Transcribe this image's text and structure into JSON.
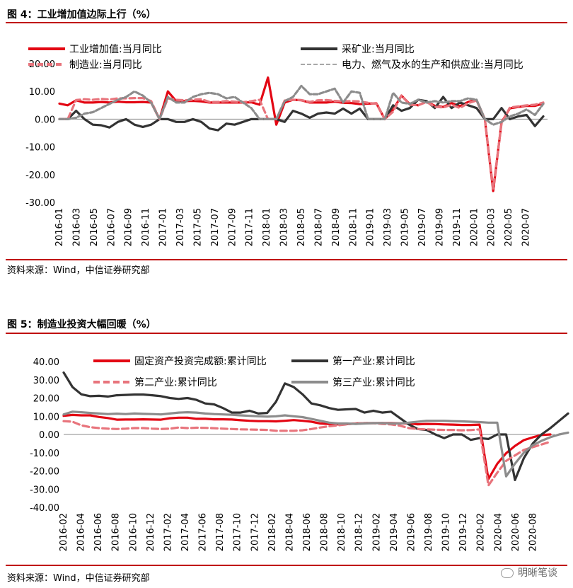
{
  "figure1": {
    "title": "图 4：工业增加值边际上行（%）",
    "source": "资料来源：Wind，中信证券研究部"
  },
  "figure2": {
    "title": "图 5：制造业投资大幅回暖（%）",
    "source": "资料来源：Wind，中信证券研究部"
  },
  "watermark": "明晰笔谈",
  "colors": {
    "red": "#e30613",
    "dark": "#333333",
    "pink": "#e8747c",
    "gray": "#8c8c8c",
    "rule": "#c00000"
  },
  "chart_data": [
    {
      "type": "line",
      "title": "图 4：工业增加值边际上行（%）",
      "ylim": [
        -30,
        20
      ],
      "yticks": [
        "-30.00",
        "-20.00",
        "-10.00",
        "0.00",
        "10.00",
        "20.00"
      ],
      "xtick_labels": [
        "2016-01",
        "2016-03",
        "2016-05",
        "2016-07",
        "2016-09",
        "2016-11",
        "2017-01",
        "2017-03",
        "2017-05",
        "2017-07",
        "2017-09",
        "2017-11",
        "2018-01",
        "2018-03",
        "2018-05",
        "2018-07",
        "2018-09",
        "2018-11",
        "2019-01",
        "2019-03",
        "2019-05",
        "2019-07",
        "2019-09",
        "2019-11",
        "2020-01",
        "2020-03",
        "2020-05",
        "2020-07"
      ],
      "legend_placement": "top",
      "series": [
        {
          "name": "工业增加值:当月同比",
          "color": "#e30613",
          "width": 3.2,
          "dash": "",
          "values": [
            5.6,
            5.0,
            6.8,
            6.0,
            6.0,
            6.2,
            6.0,
            6.3,
            6.1,
            6.1,
            6.2,
            6.0,
            0.0,
            10.0,
            6.5,
            6.5,
            6.6,
            6.4,
            6.0,
            6.0,
            6.0,
            6.0,
            6.0,
            6.1,
            5.2,
            15.0,
            -2.0,
            6.0,
            7.0,
            6.8,
            6.0,
            6.0,
            6.0,
            6.3,
            5.9,
            5.8,
            5.4,
            5.6,
            5.7,
            0.0,
            3.4,
            8.5,
            5.4,
            5.0,
            6.3,
            4.8,
            4.4,
            5.8,
            4.7,
            6.2,
            6.9,
            0.0,
            -25.9,
            -1.1,
            3.9,
            4.4,
            4.8,
            4.8,
            5.6
          ]
        },
        {
          "name": "采矿业:当月同比",
          "color": "#333333",
          "width": 3.2,
          "dash": "",
          "values": [
            0.0,
            0.0,
            3.0,
            0.0,
            -2.0,
            -2.2,
            -3.0,
            -1.0,
            0.0,
            -2.0,
            -2.8,
            -2.0,
            0.0,
            0.0,
            -1.0,
            -1.0,
            0.0,
            -1.0,
            -3.4,
            -4.0,
            -1.6,
            -2.0,
            -1.0,
            0.0,
            0.0,
            0.0,
            0.0,
            -1.0,
            3.0,
            2.0,
            0.5,
            2.0,
            2.4,
            2.0,
            3.8,
            2.0,
            3.8,
            0.0,
            0.0,
            0.0,
            5.0,
            3.0,
            4.0,
            7.0,
            6.5,
            4.0,
            8.0,
            4.0,
            6.0,
            5.0,
            4.0,
            0.0,
            0.0,
            4.0,
            0.0,
            1.0,
            1.5,
            -2.5,
            1.0
          ]
        },
        {
          "name": "制造业:当月同比",
          "color": "#e8747c",
          "width": 3.2,
          "dash": "8,5",
          "values": [
            0.0,
            0.0,
            6.9,
            7.2,
            7.0,
            7.3,
            7.1,
            7.5,
            7.5,
            7.6,
            7.6,
            6.5,
            0.0,
            7.5,
            7.0,
            6.8,
            7.0,
            7.2,
            6.2,
            6.2,
            6.5,
            6.3,
            6.1,
            6.5,
            7.0,
            0.0,
            0.0,
            6.7,
            7.0,
            6.9,
            6.2,
            6.8,
            6.9,
            6.6,
            6.4,
            6.5,
            6.4,
            5.9,
            5.5,
            0.0,
            2.7,
            8.5,
            5.2,
            5.0,
            6.2,
            4.5,
            4.2,
            5.2,
            4.0,
            5.8,
            6.7,
            0.0,
            -25.0,
            -1.5,
            4.2,
            4.6,
            5.0,
            5.2,
            6.0
          ]
        },
        {
          "name": "电力、燃气及水的生产和供应业:当月同比",
          "color": "#8c8c8c",
          "width": 3.2,
          "dash": "6,3",
          "values": [
            0.0,
            0.0,
            0.5,
            2.0,
            2.5,
            4.0,
            5.5,
            7.0,
            8.0,
            10.0,
            8.5,
            6.0,
            0.0,
            8.0,
            6.0,
            6.0,
            8.0,
            9.0,
            9.5,
            9.0,
            7.5,
            8.0,
            6.0,
            4.0,
            0.0,
            0.0,
            0.0,
            6.5,
            8.0,
            12.0,
            9.0,
            9.0,
            10.0,
            11.0,
            6.0,
            10.0,
            9.5,
            0.0,
            0.0,
            0.0,
            9.5,
            6.0,
            5.5,
            7.0,
            6.0,
            6.5,
            6.0,
            6.5,
            6.5,
            7.5,
            7.0,
            0.0,
            -2.0,
            -1.0,
            1.0,
            2.0,
            3.5,
            1.5,
            5.5
          ]
        }
      ]
    },
    {
      "type": "line",
      "title": "图 5：制造业投资大幅回暖（%）",
      "ylim": [
        -40,
        40
      ],
      "yticks": [
        "-40.00",
        "-30.00",
        "-20.00",
        "-10.00",
        "0.00",
        "10.00",
        "20.00",
        "30.00",
        "40.00"
      ],
      "xtick_labels": [
        "2016-02",
        "2016-04",
        "2016-06",
        "2016-08",
        "2016-10",
        "2016-12",
        "2017-02",
        "2017-04",
        "2017-06",
        "2017-08",
        "2017-10",
        "2017-12",
        "2018-02",
        "2018-04",
        "2018-06",
        "2018-08",
        "2018-10",
        "2018-12",
        "2019-02",
        "2019-04",
        "2019-06",
        "2019-08",
        "2019-10",
        "2019-12",
        "2020-02",
        "2020-04",
        "2020-06",
        "2020-08"
      ],
      "legend_placement": "top",
      "series": [
        {
          "name": "固定资产投资完成额:累计同比",
          "color": "#e30613",
          "width": 3.2,
          "dash": "",
          "values": [
            10.2,
            10.7,
            10.5,
            10.5,
            9.6,
            9.0,
            8.1,
            8.2,
            8.2,
            8.3,
            8.2,
            8.1,
            8.9,
            9.2,
            9.2,
            8.6,
            8.6,
            8.3,
            8.3,
            8.2,
            7.8,
            7.5,
            7.3,
            7.3,
            7.2,
            7.5,
            7.9,
            7.5,
            7.0,
            6.0,
            5.7,
            5.5,
            5.7,
            6.0,
            6.2,
            6.2,
            6.3,
            6.2,
            6.1,
            6.1,
            5.6,
            5.8,
            5.7,
            5.5,
            5.4,
            5.2,
            5.2,
            5.4,
            -24.5,
            -16.1,
            -10.3,
            -6.3,
            -3.1,
            -1.6,
            -0.3,
            0.0
          ]
        },
        {
          "name": "第一产业:累计同比",
          "color": "#333333",
          "width": 3.2,
          "dash": "",
          "values": [
            34.0,
            26.0,
            22.0,
            21.0,
            21.2,
            20.8,
            21.5,
            21.7,
            21.9,
            21.9,
            21.5,
            21.0,
            20.0,
            19.5,
            20.0,
            19.0,
            17.0,
            16.5,
            14.5,
            12.0,
            12.0,
            13.0,
            11.5,
            11.8,
            18.0,
            28.0,
            26.0,
            22.0,
            17.0,
            16.0,
            14.5,
            13.5,
            13.8,
            14.0,
            12.0,
            13.0,
            12.0,
            12.5,
            9.0,
            5.5,
            3.0,
            2.5,
            0.0,
            -2.0,
            0.0,
            0.0,
            -3.0,
            -2.0,
            -2.5,
            0.0,
            0.0,
            -25.0,
            -13.0,
            -5.0,
            0.0,
            3.5,
            7.5,
            11.5
          ]
        },
        {
          "name": "第二产业:累计同比",
          "color": "#e8747c",
          "width": 3.2,
          "dash": "9,5",
          "values": [
            7.3,
            7.0,
            5.0,
            4.0,
            3.5,
            3.2,
            3.0,
            3.2,
            3.5,
            3.5,
            3.2,
            3.0,
            3.2,
            3.8,
            3.5,
            3.7,
            3.6,
            3.4,
            3.2,
            3.0,
            2.8,
            2.7,
            2.6,
            2.5,
            2.0,
            2.0,
            2.0,
            2.3,
            3.0,
            3.8,
            4.5,
            5.0,
            5.5,
            6.0,
            6.2,
            6.2,
            5.8,
            5.5,
            4.8,
            3.5,
            3.0,
            2.8,
            2.6,
            2.5,
            2.5,
            2.3,
            2.4,
            2.8,
            -28.0,
            -21.0,
            -14.5,
            -11.5,
            -8.5,
            -7.0,
            -5.5,
            -4.0
          ]
        },
        {
          "name": "第三产业:累计同比",
          "color": "#8c8c8c",
          "width": 3.2,
          "dash": "",
          "values": [
            11.0,
            12.5,
            12.2,
            11.8,
            11.5,
            11.2,
            11.4,
            11.2,
            11.5,
            11.3,
            11.2,
            11.0,
            11.5,
            12.0,
            12.2,
            12.0,
            11.5,
            11.2,
            11.0,
            10.8,
            10.5,
            10.2,
            10.0,
            9.8,
            10.0,
            10.5,
            10.0,
            9.5,
            8.5,
            7.5,
            6.5,
            6.0,
            6.0,
            5.8,
            6.0,
            6.2,
            6.2,
            6.0,
            6.0,
            6.5,
            7.0,
            7.5,
            7.5,
            7.5,
            7.3,
            7.2,
            7.0,
            6.8,
            6.5,
            6.5,
            -23.0,
            -16.0,
            -10.0,
            -6.0,
            -3.5,
            -1.5,
            0.0,
            1.0
          ]
        }
      ]
    }
  ]
}
